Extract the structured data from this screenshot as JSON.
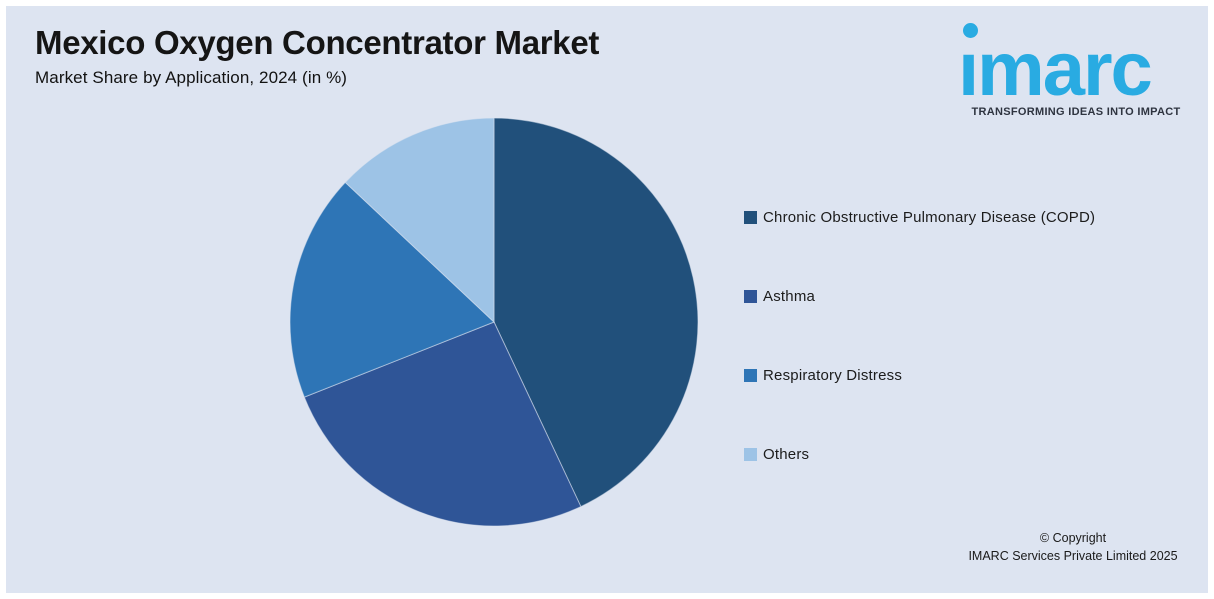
{
  "page": {
    "frame_color": "#FFFFFF",
    "background_color": "#DDE4F1"
  },
  "header": {
    "title": "Mexico Oxygen Concentrator Market",
    "subtitle": "Market Share by Application, 2024 (in %)"
  },
  "logo": {
    "brand": "imarc",
    "tagline": "TRANSFORMING IDEAS INTO IMPACT",
    "brand_color": "#29ABE2",
    "tagline_color": "#2E3440"
  },
  "chart_data": {
    "type": "pie",
    "title": "Mexico Oxygen Concentrator Market",
    "subtitle": "Market Share by Application, 2024 (in %)",
    "unit": "%",
    "categories": [
      "Chronic Obstructive Pulmonary Disease (COPD)",
      "Asthma",
      "Respiratory Distress",
      "Others"
    ],
    "values": [
      43,
      26,
      18,
      13
    ],
    "colors": [
      "#21507B",
      "#2F5597",
      "#2E75B6",
      "#9DC3E6"
    ],
    "start_angle_deg": 0,
    "direction": "clockwise",
    "legend_position": "right",
    "data_labels_shown": false
  },
  "legend": {
    "items": [
      {
        "label": "Chronic Obstructive Pulmonary Disease (COPD)",
        "color": "#21507B"
      },
      {
        "label": "Asthma",
        "color": "#2F5597"
      },
      {
        "label": "Respiratory Distress",
        "color": "#2E75B6"
      },
      {
        "label": "Others",
        "color": "#9DC3E6"
      }
    ]
  },
  "footer": {
    "line1": "© Copyright",
    "line2": "IMARC Services Private Limited 2025"
  }
}
